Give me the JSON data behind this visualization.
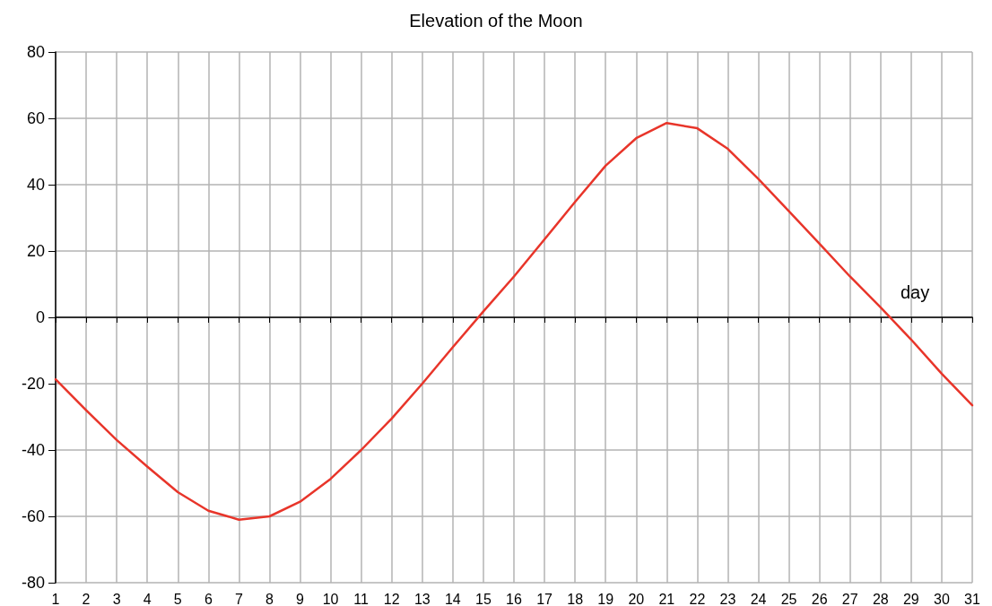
{
  "chart_data": {
    "type": "line",
    "title": "Elevation of the Moon",
    "xlabel": "day",
    "x": [
      1,
      2,
      3,
      4,
      5,
      6,
      7,
      8,
      9,
      10,
      11,
      12,
      13,
      14,
      15,
      16,
      17,
      18,
      19,
      20,
      21,
      22,
      23,
      24,
      25,
      26,
      27,
      28,
      29,
      30,
      31
    ],
    "series": [
      {
        "color": "#e8352a",
        "values": [
          -18.7,
          -28,
          -37,
          -45,
          -52.7,
          -58.3,
          -61,
          -60,
          -55.6,
          -48.7,
          -40,
          -30.5,
          -20,
          -9,
          1.8,
          12.3,
          23.5,
          34.8,
          45.7,
          54,
          58.6,
          57,
          50.8,
          41.7,
          32,
          22.2,
          12.3,
          3,
          -6.7,
          -17,
          -26.5
        ]
      }
    ],
    "xlim": [
      1,
      31
    ],
    "xticks": [
      1,
      2,
      3,
      4,
      5,
      6,
      7,
      8,
      9,
      10,
      11,
      12,
      13,
      14,
      15,
      16,
      17,
      18,
      19,
      20,
      21,
      22,
      23,
      24,
      25,
      26,
      27,
      28,
      29,
      30,
      31
    ],
    "ylim": [
      -80,
      80
    ],
    "yticks": [
      -80,
      -60,
      -40,
      -20,
      0,
      20,
      40,
      60,
      80
    ],
    "grid": true,
    "marker": "none",
    "line_style": "solid"
  }
}
